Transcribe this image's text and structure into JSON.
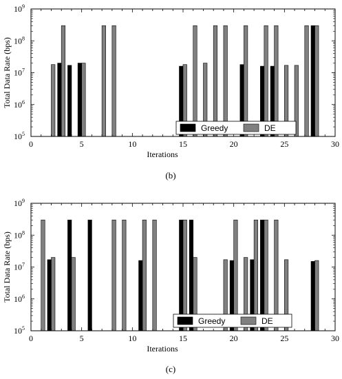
{
  "chart_data": [
    {
      "type": "bar",
      "caption": "(b)",
      "xlabel": "Iterations",
      "ylabel": "Total Data Rate (bps)",
      "xlim": [
        0,
        30
      ],
      "xticks": [
        "0",
        "5",
        "10",
        "15",
        "20",
        "25",
        "30"
      ],
      "ylim": [
        100000,
        1000000000
      ],
      "yscale": "log",
      "yticks": [
        {
          "base": "10",
          "exp": "5"
        },
        {
          "base": "10",
          "exp": "6"
        },
        {
          "base": "10",
          "exp": "7"
        },
        {
          "base": "10",
          "exp": "8"
        },
        {
          "base": "10",
          "exp": "9"
        }
      ],
      "grid": false,
      "legend_position": "bottom-right",
      "series": [
        {
          "name": "Greedy",
          "color": "#000000",
          "x": [
            3,
            4,
            5,
            15,
            21,
            23,
            24,
            28
          ],
          "values": [
            20000000,
            17000000,
            20000000,
            16000000,
            18000000,
            16000000,
            16000000,
            300000000
          ]
        },
        {
          "name": "DE",
          "color": "#808080",
          "x": [
            2,
            3,
            5,
            7,
            8,
            15,
            16,
            17,
            18,
            19,
            21,
            23,
            24,
            25,
            26,
            27,
            28
          ],
          "values": [
            18000000,
            300000000,
            20000000,
            300000000,
            300000000,
            18000000,
            300000000,
            20000000,
            300000000,
            300000000,
            300000000,
            300000000,
            300000000,
            17000000,
            17000000,
            300000000,
            300000000
          ]
        }
      ]
    },
    {
      "type": "bar",
      "caption": "(c)",
      "xlabel": "Iterations",
      "ylabel": "Total Data Rate (bps)",
      "xlim": [
        0,
        30
      ],
      "xticks": [
        "0",
        "5",
        "10",
        "15",
        "20",
        "25",
        "30"
      ],
      "ylim": [
        100000,
        1000000000
      ],
      "yscale": "log",
      "yticks": [
        {
          "base": "10",
          "exp": "5"
        },
        {
          "base": "10",
          "exp": "6"
        },
        {
          "base": "10",
          "exp": "7"
        },
        {
          "base": "10",
          "exp": "8"
        },
        {
          "base": "10",
          "exp": "9"
        }
      ],
      "grid": false,
      "legend_position": "bottom-right",
      "series": [
        {
          "name": "Greedy",
          "color": "#000000",
          "x": [
            2,
            4,
            6,
            11,
            15,
            16,
            20,
            22,
            23,
            28
          ],
          "values": [
            17000000,
            300000000,
            300000000,
            16000000,
            300000000,
            300000000,
            16000000,
            17000000,
            300000000,
            15000000
          ]
        },
        {
          "name": "DE",
          "color": "#808080",
          "x": [
            1,
            2,
            4,
            8,
            9,
            11,
            12,
            15,
            16,
            19,
            20,
            21,
            22,
            23,
            24,
            25,
            28
          ],
          "values": [
            300000000,
            20000000,
            20000000,
            300000000,
            300000000,
            300000000,
            300000000,
            300000000,
            20000000,
            17000000,
            300000000,
            20000000,
            300000000,
            300000000,
            300000000,
            17000000,
            16000000
          ]
        }
      ]
    }
  ]
}
